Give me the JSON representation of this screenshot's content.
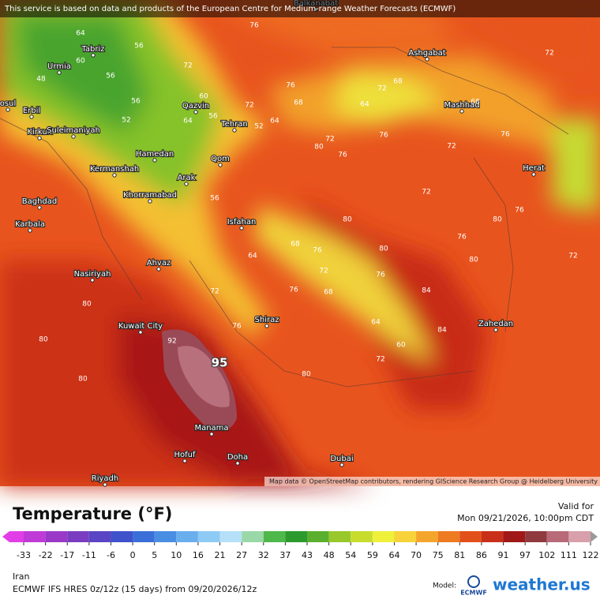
{
  "notice": "This service is based on data and products of the European Centre for Medium-range Weather Forecasts (ECMWF)",
  "map": {
    "cities": [
      "Balkanabat",
      "Tabriz",
      "Urmia",
      "osul",
      "Erbil",
      "Kirkuk",
      "Suleimaniyah",
      "Qazvin",
      "Tehran",
      "Hamedan",
      "Qom",
      "Kermanshah",
      "Arak",
      "Khorramabad",
      "Baghdad",
      "Karbala",
      "Isfahan",
      "Ahvaz",
      "Nasiriyah",
      "Kuwait City",
      "Shiraz",
      "Manama",
      "Hofuf",
      "Doha",
      "Riyadh",
      "Dubai",
      "Ashgabat",
      "Mashhad",
      "Herat",
      "Zahedan"
    ],
    "contour_labels": [
      "64",
      "56",
      "60",
      "48",
      "56",
      "56",
      "52",
      "60",
      "64",
      "56",
      "52",
      "64",
      "72",
      "68",
      "76",
      "72",
      "76",
      "64",
      "68",
      "72",
      "76",
      "72",
      "80",
      "76",
      "72",
      "68",
      "56",
      "64",
      "68",
      "72",
      "76",
      "80",
      "76",
      "68",
      "64",
      "60",
      "72",
      "76",
      "80",
      "80",
      "84",
      "80",
      "76",
      "72",
      "80",
      "92",
      "80",
      "76",
      "72",
      "80",
      "80",
      "76",
      "72",
      "76",
      "84",
      "72"
    ],
    "max_label": "95",
    "attribution": "Map data © OpenStreetMap contributors, rendering GIScience Research Group @ Heidelberg University"
  },
  "legend": {
    "title": "Temperature (°F)",
    "valid_label": "Valid for",
    "valid_time": "Mon 09/21/2026, 10:00pm CDT",
    "ticks": [
      -33,
      -22,
      -17,
      -11,
      -6,
      0,
      5,
      10,
      16,
      21,
      27,
      32,
      37,
      43,
      48,
      54,
      59,
      64,
      70,
      75,
      81,
      86,
      91,
      97,
      102,
      111,
      122
    ],
    "colors": [
      "#e23ee8",
      "#c03ad8",
      "#9a39c8",
      "#7a3cc0",
      "#5a45c4",
      "#3f52cc",
      "#3a6ed8",
      "#4a8ee4",
      "#6aaeee",
      "#8ecbf4",
      "#b6e0f8",
      "#9ad8a8",
      "#4fb84a",
      "#2d9a2e",
      "#5ab02e",
      "#98c82c",
      "#c8dc2e",
      "#eef03a",
      "#f7d23a",
      "#f4a52c",
      "#ee7a22",
      "#e2501a",
      "#c8301a",
      "#a01818",
      "#8e3a3e",
      "#b86a78",
      "#d8a0aa",
      "#9a9a9a"
    ]
  },
  "footer": {
    "region": "Iran",
    "model_run": "ECMWF IFS HRES 0z/12z (15 days) from 09/20/2026/12z",
    "model_label": "Model:",
    "model_logo": "ECMWF",
    "brand": "weather.us"
  }
}
